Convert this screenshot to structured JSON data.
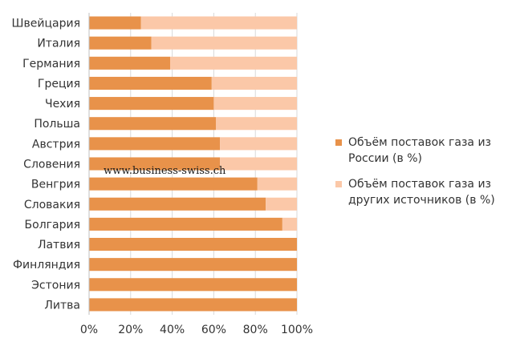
{
  "chart_data": {
    "type": "bar",
    "orientation": "horizontal",
    "stacked": true,
    "percent_stacked": true,
    "categories": [
      "Швейцария",
      "Италия",
      "Германия",
      "Греция",
      "Чехия",
      "Польша",
      "Австрия",
      "Словения",
      "Венгрия",
      "Словакия",
      "Болгария",
      "Латвия",
      "Финляндия",
      "Эстония",
      "Литва"
    ],
    "series": [
      {
        "name": "Объём поставок газа из России (в %)",
        "color": "#E8924A",
        "values": [
          25,
          30,
          39,
          59,
          60,
          61,
          63,
          63,
          81,
          85,
          93,
          100,
          100,
          100,
          100
        ]
      },
      {
        "name": "Объём поставок газа из других источников (в %)",
        "color": "#FBC8A8",
        "values": [
          75,
          70,
          61,
          41,
          40,
          39,
          37,
          37,
          19,
          15,
          7,
          0,
          0,
          0,
          0
        ]
      }
    ],
    "xlim": [
      0,
      100
    ],
    "x_ticks": [
      "0%",
      "20%",
      "40%",
      "60%",
      "80%",
      "100%"
    ],
    "grid": true,
    "legend_position": "right",
    "title": "",
    "xlabel": "",
    "ylabel": ""
  },
  "watermark": "www.business-swiss.ch"
}
